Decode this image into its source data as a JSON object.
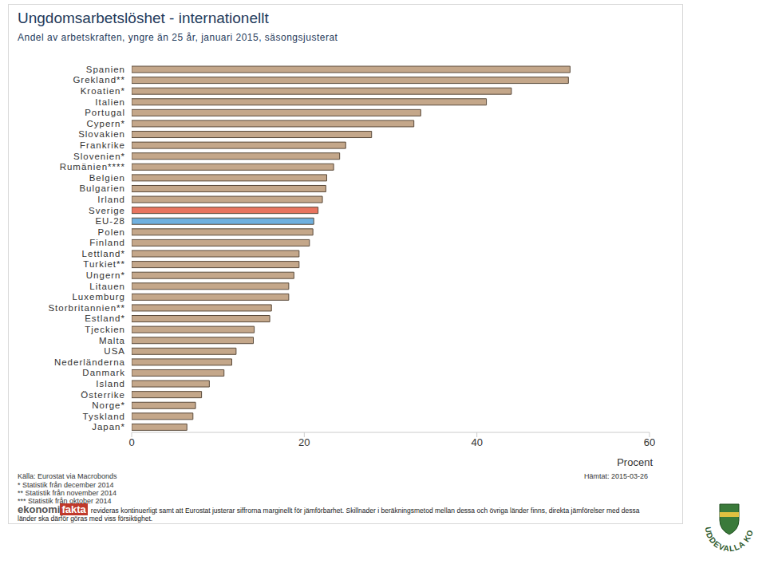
{
  "chart_data": {
    "type": "bar",
    "orientation": "horizontal",
    "title": "Ungdomsarbetslöshet - internationellt",
    "subtitle": "Andel av arbetskraften, yngre än 25 år, januari 2015, säsongsjusterat",
    "categories": [
      "Spanien",
      "Grekland**",
      "Kroatien*",
      "Italien",
      "Portugal",
      "Cypern*",
      "Slovakien",
      "Frankrike",
      "Slovenien*",
      "Rumänien****",
      "Belgien",
      "Bulgarien",
      "Irland",
      "Sverige",
      "EU-28",
      "Polen",
      "Finland",
      "Lettland*",
      "Turkiet**",
      "Ungern*",
      "Litauen",
      "Luxemburg",
      "Storbritannien**",
      "Estland*",
      "Tjeckien",
      "Malta",
      "USA",
      "Nederländerna",
      "Danmark",
      "Island",
      "Österrike",
      "Norge*",
      "Tyskland",
      "Japan*"
    ],
    "values": [
      50.8,
      50.6,
      44.0,
      41.1,
      33.5,
      32.7,
      27.8,
      24.8,
      24.1,
      23.4,
      22.6,
      22.5,
      22.1,
      21.6,
      21.1,
      21.0,
      20.6,
      19.4,
      19.4,
      18.8,
      18.2,
      18.2,
      16.2,
      16.0,
      14.2,
      14.1,
      12.1,
      11.6,
      10.7,
      9.0,
      8.1,
      7.4,
      7.1,
      6.4
    ],
    "colors": [
      "#c4a78a",
      "#c4a78a",
      "#c4a78a",
      "#c4a78a",
      "#c4a78a",
      "#c4a78a",
      "#c4a78a",
      "#c4a78a",
      "#c4a78a",
      "#c4a78a",
      "#c4a78a",
      "#c4a78a",
      "#c4a78a",
      "#e8745f",
      "#6fb0df",
      "#c4a78a",
      "#c4a78a",
      "#c4a78a",
      "#c4a78a",
      "#c4a78a",
      "#c4a78a",
      "#c4a78a",
      "#c4a78a",
      "#c4a78a",
      "#c4a78a",
      "#c4a78a",
      "#c4a78a",
      "#c4a78a",
      "#c4a78a",
      "#c4a78a",
      "#c4a78a",
      "#c4a78a",
      "#c4a78a",
      "#c4a78a"
    ],
    "xlim": [
      0,
      60
    ],
    "xticks": [
      0,
      20,
      40,
      60
    ],
    "xlabel": "Procent",
    "grid": false,
    "source": "Källa: Eurostat via Macrobonds",
    "retrieved": "Hämtat: 2015-03-26",
    "notes": [
      "* Statistik från december 2014",
      "** Statistik från november 2014",
      "*** Statistik från oktober 2014"
    ],
    "footnote": "revideras kontinuerligt samt att Eurostat justerar siffrorna marginellt för jämförbarhet. Skillnader i beräkningsmetod mellan dessa och övriga länder finns, direkta jämförelser med dessa länder ska därför göras med viss försiktighet.",
    "logo": "ekonomifakta",
    "logo_right": "UDDEVALLA KOMMUN"
  }
}
